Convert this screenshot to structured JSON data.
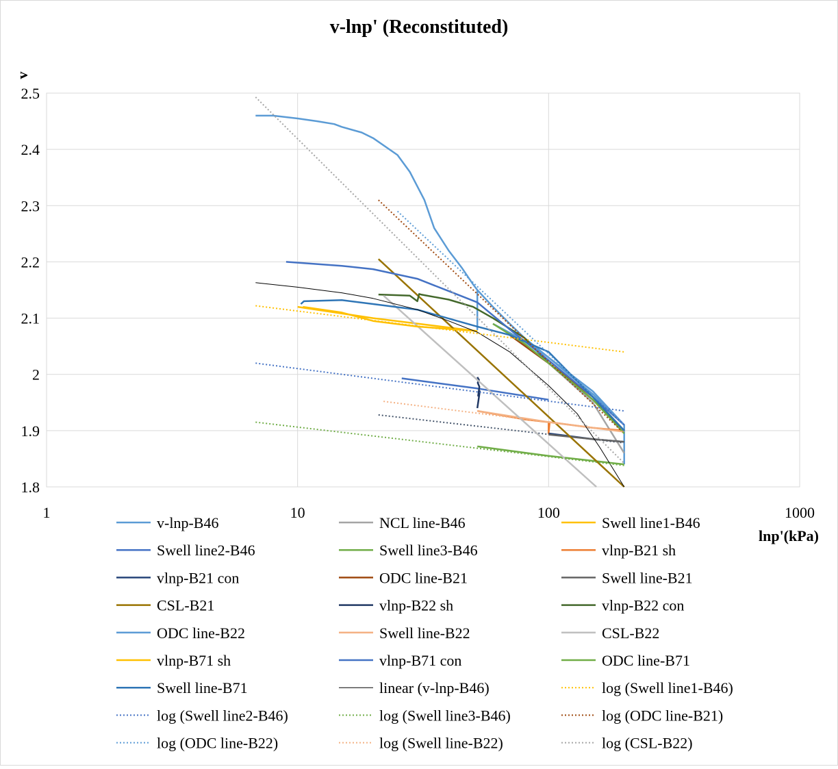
{
  "chart_data": {
    "type": "line",
    "title": "v-lnp' (Reconstituted)",
    "xlabel": "lnp'(kPa)",
    "ylabel": "v",
    "x_scale": "log",
    "xlim": [
      1,
      1000
    ],
    "ylim": [
      1.8,
      2.5
    ],
    "x_ticks": [
      1,
      10,
      100,
      1000
    ],
    "x_tick_labels": [
      "1",
      "10",
      "100",
      "1000"
    ],
    "y_ticks": [
      1.8,
      1.9,
      2.0,
      2.1,
      2.2,
      2.3,
      2.4,
      2.5
    ],
    "y_tick_labels": [
      "1.8",
      "1.9",
      "2",
      "2.1",
      "2.2",
      "2.3",
      "2.4",
      "2.5"
    ],
    "grid": true,
    "legend_position": "bottom",
    "series": [
      {
        "name": "v-lnp-B46",
        "color": "#5b9bd5",
        "dash": "solid",
        "width": 2.5,
        "x": [
          6.8,
          8,
          10,
          12,
          14,
          15,
          18,
          20,
          25,
          28,
          32,
          35,
          40,
          45,
          50,
          52,
          52,
          52,
          60,
          70,
          80,
          100,
          120,
          150,
          200,
          200
        ],
        "y": [
          2.46,
          2.46,
          2.455,
          2.45,
          2.445,
          2.44,
          2.43,
          2.42,
          2.39,
          2.36,
          2.31,
          2.26,
          2.22,
          2.19,
          2.16,
          2.15,
          2.08,
          2.15,
          2.12,
          2.09,
          2.065,
          2.03,
          2.0,
          1.965,
          1.91,
          1.84
        ]
      },
      {
        "name": "NCL line-B46",
        "color": "#a5a5a5",
        "dash": "solid",
        "width": 2.5,
        "x": [
          70,
          100,
          150,
          200
        ],
        "y": [
          2.07,
          2.02,
          1.95,
          1.86
        ]
      },
      {
        "name": "Swell line1-B46",
        "color": "#ffc000",
        "dash": "solid",
        "width": 2.5,
        "x": [
          10,
          20,
          52
        ],
        "y": [
          2.12,
          2.1,
          2.077
        ]
      },
      {
        "name": "Swell line2-B46",
        "color": "#4472c4",
        "dash": "solid",
        "width": 2.5,
        "x": [
          26,
          52,
          100
        ],
        "y": [
          1.993,
          1.975,
          1.955
        ]
      },
      {
        "name": "Swell line3-B46",
        "color": "#70ad47",
        "dash": "solid",
        "width": 2.5,
        "x": [
          52,
          100,
          200
        ],
        "y": [
          1.872,
          1.855,
          1.84
        ]
      },
      {
        "name": "vlnp-B21 sh",
        "color": "#ed7d31",
        "dash": "solid",
        "width": 2.5,
        "x": [
          52,
          80,
          100,
          100,
          101,
          150,
          200
        ],
        "y": [
          1.935,
          1.92,
          1.915,
          1.895,
          1.915,
          1.905,
          1.9
        ]
      },
      {
        "name": "vlnp-B21 con",
        "color": "#264478",
        "dash": "solid",
        "width": 2.5,
        "x": [
          100,
          150,
          200
        ],
        "y": [
          1.895,
          1.885,
          1.88
        ]
      },
      {
        "name": "ODC line-B21",
        "color": "#9e480e",
        "dash": "solid",
        "width": 2.5,
        "x": [
          70,
          100,
          150,
          200
        ],
        "y": [
          2.07,
          2.02,
          1.96,
          1.9
        ]
      },
      {
        "name": "Swell line-B21",
        "color": "#636363",
        "dash": "solid",
        "width": 2.5,
        "x": [
          100,
          150,
          200
        ],
        "y": [
          1.893,
          1.885,
          1.88
        ]
      },
      {
        "name": "CSL-B21",
        "color": "#997300",
        "dash": "solid",
        "width": 2.5,
        "x": [
          21,
          200
        ],
        "y": [
          2.205,
          1.8
        ]
      },
      {
        "name": "vlnp-B22 sh",
        "color": "#203864",
        "dash": "solid",
        "width": 2.5,
        "x": [
          52,
          52.6,
          53.2,
          52.4,
          53,
          52.2,
          52.8,
          52
        ],
        "y": [
          1.94,
          1.955,
          1.97,
          1.962,
          1.978,
          1.985,
          1.99,
          1.995
        ]
      },
      {
        "name": "vlnp-B22 con",
        "color": "#43682b",
        "dash": "solid",
        "width": 2.5,
        "x": [
          21,
          28,
          30,
          30.5,
          31,
          40,
          50,
          60,
          80,
          100,
          150,
          200
        ],
        "y": [
          2.142,
          2.14,
          2.13,
          2.143,
          2.142,
          2.133,
          2.12,
          2.1,
          2.065,
          2.02,
          1.955,
          1.9
        ]
      },
      {
        "name": "ODC line-B22",
        "color": "#5b9bd5",
        "dash": "solid",
        "width": 2.5,
        "x": [
          60,
          80,
          100,
          150,
          200
        ],
        "y": [
          2.09,
          2.06,
          2.03,
          1.97,
          1.91
        ]
      },
      {
        "name": "Swell line-B22",
        "color": "#f4b183",
        "dash": "solid",
        "width": 2.5,
        "x": [
          52,
          100,
          200
        ],
        "y": [
          1.935,
          1.915,
          1.898
        ]
      },
      {
        "name": "CSL-B22",
        "color": "#bfbfbf",
        "dash": "solid",
        "width": 2.5,
        "x": [
          22,
          155
        ],
        "y": [
          2.14,
          1.8
        ]
      },
      {
        "name": "vlnp-B71 sh",
        "color": "#ffc000",
        "dash": "solid",
        "width": 2.5,
        "x": [
          10.5,
          15,
          20,
          30,
          52
        ],
        "y": [
          2.12,
          2.11,
          2.095,
          2.085,
          2.077
        ]
      },
      {
        "name": "vlnp-B71 con",
        "color": "#4472c4",
        "dash": "solid",
        "width": 2.5,
        "x": [
          9,
          15,
          20,
          30,
          40,
          52,
          70,
          100,
          150,
          200
        ],
        "y": [
          2.2,
          2.193,
          2.187,
          2.17,
          2.148,
          2.128,
          2.08,
          2.025,
          1.96,
          1.91
        ]
      },
      {
        "name": "ODC line-B71",
        "color": "#70ad47",
        "dash": "solid",
        "width": 2.5,
        "x": [
          60,
          80,
          100,
          150,
          200
        ],
        "y": [
          2.09,
          2.055,
          2.02,
          1.955,
          1.895
        ]
      },
      {
        "name": "Swell line-B71",
        "color": "#2e75b6",
        "dash": "solid",
        "width": 2.5,
        "x": [
          10.3,
          10.6,
          15,
          20,
          30,
          52,
          70,
          100,
          150,
          200
        ],
        "y": [
          2.125,
          2.13,
          2.132,
          2.125,
          2.115,
          2.085,
          2.07,
          2.04,
          1.96,
          1.9
        ]
      },
      {
        "name": "linear (v-lnp-B46)",
        "color": "#000000",
        "dash": "solid",
        "width": 1,
        "x": [
          6.8,
          10,
          15,
          20,
          30,
          40,
          52,
          70,
          100,
          130,
          160,
          200
        ],
        "y": [
          2.163,
          2.155,
          2.145,
          2.135,
          2.115,
          2.095,
          2.075,
          2.04,
          1.98,
          1.93,
          1.87,
          1.8
        ]
      },
      {
        "name": "log (Swell line1-B46)",
        "color": "#ffc000",
        "dash": "dotted",
        "width": 2,
        "x": [
          6.8,
          200
        ],
        "y": [
          2.122,
          2.04
        ]
      },
      {
        "name": "log (Swell line2-B46)",
        "color": "#4472c4",
        "dash": "dotted",
        "width": 2,
        "x": [
          6.8,
          200
        ],
        "y": [
          2.02,
          1.935
        ]
      },
      {
        "name": "log (Swell line3-B46)",
        "color": "#70ad47",
        "dash": "dotted",
        "width": 2,
        "x": [
          6.8,
          200
        ],
        "y": [
          1.915,
          1.838
        ]
      },
      {
        "name": "log (ODC line-B21)",
        "color": "#9e480e",
        "dash": "dotted",
        "width": 2,
        "x": [
          21,
          200
        ],
        "y": [
          2.31,
          1.895
        ]
      },
      {
        "name": "log (ODC line-B22)",
        "color": "#5b9bd5",
        "dash": "dotted",
        "width": 2,
        "x": [
          25,
          200
        ],
        "y": [
          2.29,
          1.91
        ]
      },
      {
        "name": "log (Swell line-B22)",
        "color": "#f4b183",
        "dash": "dotted",
        "width": 2,
        "x": [
          22,
          200
        ],
        "y": [
          1.952,
          1.898
        ]
      },
      {
        "name": "log (CSL-B22)",
        "color": "#a5a5a5",
        "dash": "dotted",
        "width": 2,
        "x": [
          6.8,
          200
        ],
        "y": [
          2.493,
          1.842
        ]
      }
    ],
    "extra_lines": [
      {
        "color": "#44546a",
        "dash": "dotted",
        "width": 2,
        "x": [
          21,
          200
        ],
        "y": [
          1.928,
          1.878
        ]
      }
    ]
  }
}
